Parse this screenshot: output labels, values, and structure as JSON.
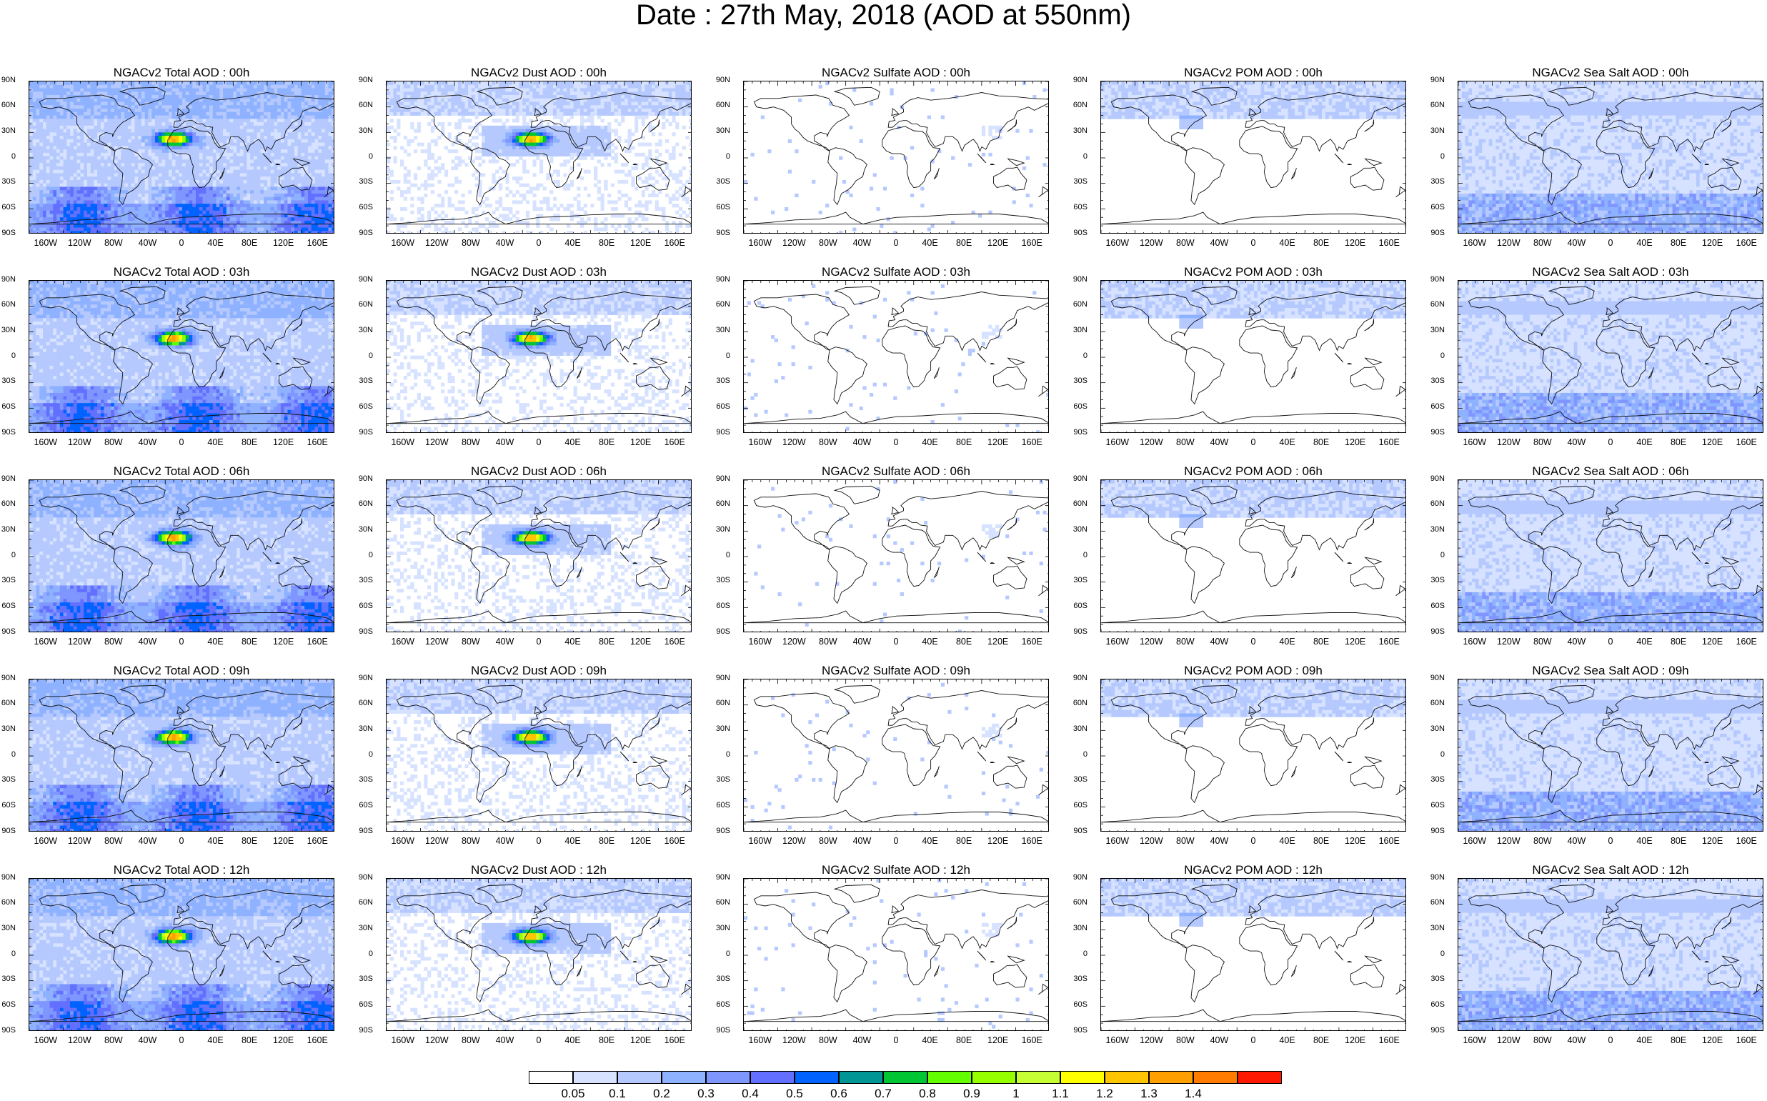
{
  "title": "Date : 27th May, 2018 (AOD at 550nm)",
  "lat_labels": [
    "90N",
    "60N",
    "30N",
    "0",
    "30S",
    "60S",
    "90S"
  ],
  "lon_labels": [
    "160W",
    "120W",
    "80W",
    "40W",
    "0",
    "40E",
    "80E",
    "120E",
    "160E"
  ],
  "panels": [
    [
      "NGACv2 Total AOD : 00h",
      "NGACv2 Dust AOD : 00h",
      "NGACv2 Sulfate AOD : 00h",
      "NGACv2 POM AOD : 00h",
      "NGACv2 Sea Salt AOD : 00h"
    ],
    [
      "NGACv2 Total AOD : 03h",
      "NGACv2 Dust AOD : 03h",
      "NGACv2 Sulfate AOD : 03h",
      "NGACv2 POM AOD : 03h",
      "NGACv2 Sea Salt AOD : 03h"
    ],
    [
      "NGACv2 Total AOD : 06h",
      "NGACv2 Dust AOD : 06h",
      "NGACv2 Sulfate AOD : 06h",
      "NGACv2 POM AOD : 06h",
      "NGACv2 Sea Salt AOD : 06h"
    ],
    [
      "NGACv2 Total AOD : 09h",
      "NGACv2 Dust AOD : 09h",
      "NGACv2 Sulfate AOD : 09h",
      "NGACv2 POM AOD : 09h",
      "NGACv2 Sea Salt  AOD : 09h"
    ],
    [
      "NGACv2 Total AOD :  12h",
      "NGACv2 Dust AOD : 12h",
      "NGACv2 Sulfate AOD : 12h",
      "NGACv2 POM  AOD : 12h",
      "NGACv2 Sea Salt AOD : 12h"
    ]
  ],
  "colorbar": {
    "labels": [
      "0.05",
      "0.1",
      "0.2",
      "0.3",
      "0.4",
      "0.5",
      "0.6",
      "0.7",
      "0.8",
      "0.9",
      "1",
      "1.1",
      "1.2",
      "1.3",
      "1.4"
    ],
    "colors": [
      "#ffffff",
      "#d6e2ff",
      "#b5c9ff",
      "#8eb2ff",
      "#7f96ff",
      "#6370ff",
      "#0063ff",
      "#009696",
      "#00c633",
      "#63ff00",
      "#96ff00",
      "#c6ff33",
      "#ffff00",
      "#ffc600",
      "#ffa000",
      "#ff7c00",
      "#ff1900"
    ]
  },
  "variables": [
    "total",
    "dust",
    "sulfate",
    "pom",
    "seasalt"
  ]
}
